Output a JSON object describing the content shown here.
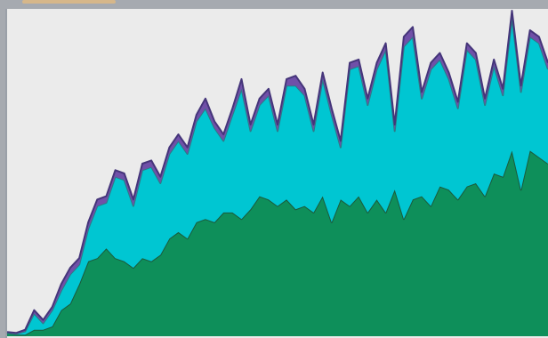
{
  "chart_data": {
    "type": "stacked_area",
    "ylim": [
      0,
      100
    ],
    "series": [
      {
        "color": "#0e8f5a",
        "stroke": "#1b5a3c",
        "values": [
          1,
          0.5,
          0.5,
          2,
          2,
          3,
          8,
          10,
          16,
          23,
          24,
          27,
          24,
          23,
          21,
          24,
          23,
          25,
          30,
          32,
          30,
          35,
          36,
          35,
          38,
          38,
          36,
          39,
          43,
          42,
          40,
          42,
          39,
          40,
          38,
          43,
          35,
          42,
          40,
          43,
          38,
          42,
          38,
          45,
          36,
          42,
          43,
          40,
          46,
          45,
          42,
          46,
          47,
          43,
          50,
          49,
          57,
          45,
          57,
          55,
          53
        ]
      },
      {
        "color": "#00c6d2",
        "stroke": "#2a7d86",
        "values": [
          0,
          0.2,
          1,
          5,
          2,
          5,
          6,
          9,
          6,
          10,
          16,
          14,
          25,
          25,
          19,
          27,
          29,
          22,
          26,
          28,
          26,
          31,
          34,
          29,
          22,
          30,
          40,
          24,
          28,
          32,
          23,
          35,
          38,
          34,
          25,
          36,
          33,
          16,
          42,
          40,
          33,
          40,
          50,
          18,
          53,
          50,
          30,
          42,
          39,
          34,
          28,
          42,
          38,
          28,
          33,
          25,
          41,
          30,
          35,
          35,
          29
        ]
      },
      {
        "color": "#7050a8",
        "stroke": "#45357a",
        "values": [
          0.3,
          0.3,
          0.5,
          1,
          1,
          1,
          2,
          2,
          2,
          2,
          2,
          2,
          2,
          2,
          2,
          2,
          2,
          2,
          2,
          2,
          2,
          2,
          3,
          2,
          2,
          2,
          3,
          2,
          2,
          2,
          2,
          2,
          3,
          2,
          2,
          2,
          2,
          2,
          2,
          2,
          2,
          2,
          2,
          2,
          3,
          3,
          2,
          2,
          2,
          2,
          2,
          2,
          2,
          2,
          2,
          2,
          2,
          2,
          2,
          2,
          2
        ]
      }
    ]
  }
}
